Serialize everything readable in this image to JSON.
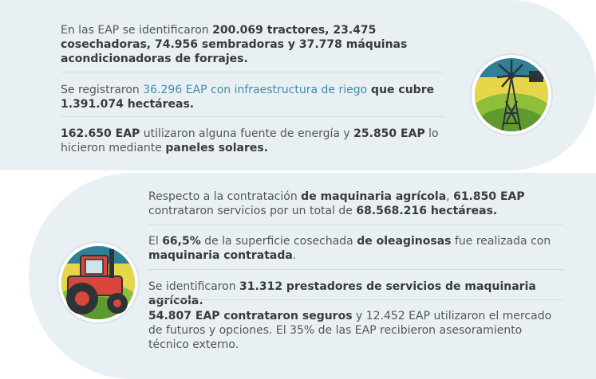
{
  "section1": {
    "p1": {
      "t1": "En las EAP se identificaron ",
      "b1": "200.069 tractores, 23.475 cosechadoras, 74.956 sembradoras y 37.778 máquinas acondicionadoras de forrajes."
    },
    "p2": {
      "t1": "Se registraron ",
      "hl1": "36.296",
      "t2": " ",
      "hl2": "EAP con infraestructura de riego",
      "b1": " que cubre 1.391.074 hectáreas."
    },
    "p3": {
      "b1": "162.650 EAP",
      "t1": " utilizaron alguna fuente de energía y ",
      "b2": "25.850 EAP",
      "t2": " lo hicieron mediante ",
      "b3": "paneles solares."
    },
    "icon": "windmill-icon"
  },
  "section2": {
    "p1": {
      "t1": "Respecto a la contratación ",
      "b1": "de maquinaria agrícola",
      "t2": ", ",
      "b2": "61.850 EAP",
      "t3": " contrataron servicios por un total de ",
      "b3": "68.568.216 hectáreas."
    },
    "p2": {
      "t1": "El ",
      "b1": "66,5%",
      "t2": " de la superficie cosechada ",
      "b2": "de oleaginosas",
      "t3": " fue realizada con ",
      "b3": "maquinaria contratada",
      "t4": "."
    },
    "p3": {
      "t1": "Se identificaron ",
      "b1": "31.312 prestadores de servicios de maquinaria agrícola."
    },
    "p4": {
      "b1": "54.807 EAP contrataron seguros",
      "t1": " y 12.452 EAP utilizaron el mercado de futuros y opciones. El 35% de las EAP recibieron asesoramiento técnico externo."
    },
    "icon": "tractor-icon"
  },
  "colors": {
    "card_bg": "#e9f0f3",
    "highlight": "#3a8fa6",
    "text": "#555555",
    "bold_text": "#3a3a3a"
  }
}
